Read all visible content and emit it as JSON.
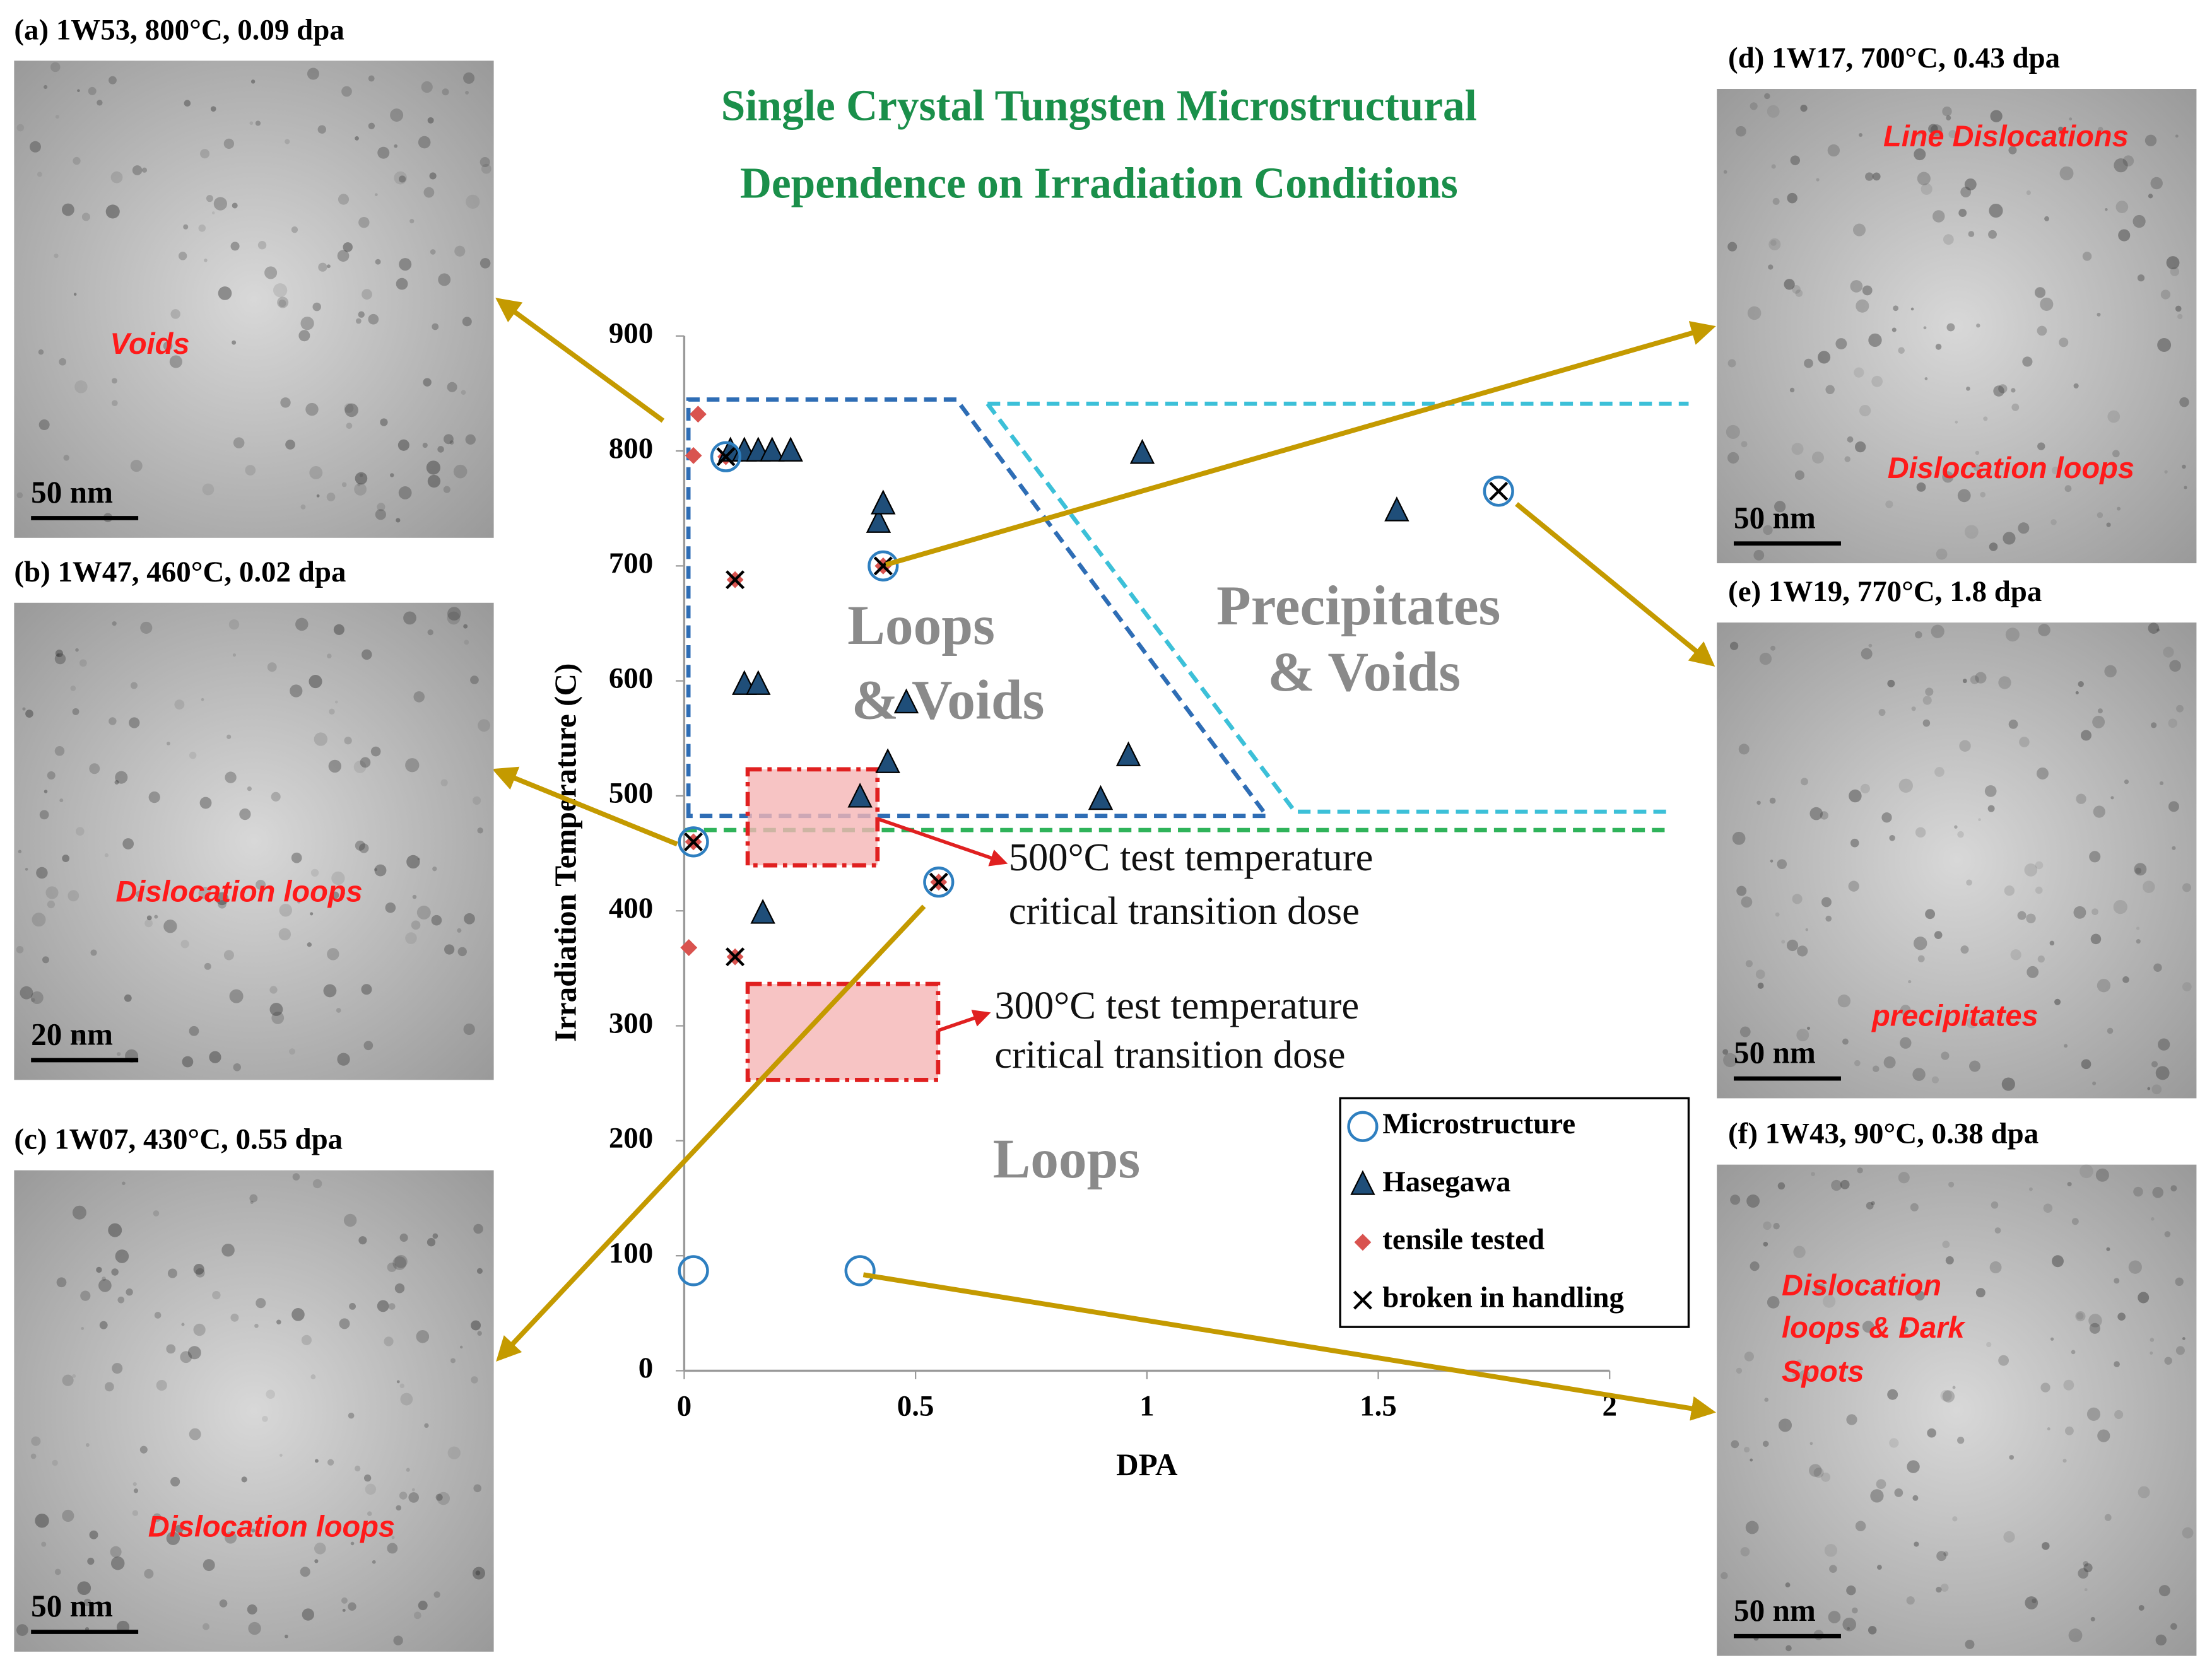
{
  "chart_data": {
    "type": "scatter",
    "title": [
      "Single Crystal Tungsten Microstructural",
      "Dependence on Irradiation Conditions"
    ],
    "x_label": "DPA",
    "y_label": "Irradiation Temperature (C)",
    "xlim": [
      0,
      2
    ],
    "ylim": [
      0,
      900
    ],
    "xticks": [
      0,
      0.5,
      1,
      1.5,
      2
    ],
    "yticks": [
      0,
      100,
      200,
      300,
      400,
      500,
      600,
      700,
      800,
      900
    ],
    "series": [
      {
        "name": "Microstructure",
        "marker": "circle",
        "color": "#2e7fc0",
        "x": [
          0.09,
          0.43,
          0.02,
          0.55,
          1.76,
          0.02,
          0.38
        ],
        "y": [
          795,
          700,
          460,
          425,
          765,
          87,
          87
        ]
      },
      {
        "name": "Hasegawa",
        "marker": "triangle",
        "color": "#1f4e79",
        "x": [
          0.1,
          0.13,
          0.16,
          0.19,
          0.23,
          0.42,
          0.43,
          0.99,
          1.54,
          0.13,
          0.16,
          0.48,
          0.44,
          0.38,
          0.9,
          0.96,
          0.17
        ],
        "y": [
          800,
          800,
          800,
          800,
          800,
          738,
          754,
          798,
          748,
          597,
          597,
          581,
          529,
          499,
          497,
          535,
          398
        ]
      },
      {
        "name": "tensile tested",
        "marker": "diamond",
        "color": "#d9534f",
        "x": [
          0.03,
          0.02,
          0.09,
          0.11,
          0.43,
          0.02,
          0.55,
          0.11,
          0.01
        ],
        "y": [
          832,
          796,
          795,
          688,
          700,
          460,
          425,
          360,
          368
        ]
      },
      {
        "name": "broken in handling",
        "marker": "x",
        "color": "#000000",
        "x": [
          0.09,
          0.11,
          0.43,
          0.02,
          0.11,
          0.55,
          1.76
        ],
        "y": [
          795,
          688,
          700,
          460,
          360,
          425,
          765
        ]
      }
    ],
    "annotations": [
      "Loops",
      "& Voids",
      "Precipitates",
      "& Voids",
      "Loops",
      "500°C test temperature",
      "critical transition dose",
      "300°C test temperature",
      "critical transition dose"
    ]
  },
  "panels": [
    {
      "title": "(a) 1W53, 800°C, 0.09 dpa",
      "scale_bar": "50 nm",
      "labels": [
        "Voids"
      ]
    },
    {
      "title": "(b) 1W47, 460°C, 0.02 dpa",
      "scale_bar": "20 nm",
      "labels": [
        "Dislocation  loops"
      ]
    },
    {
      "title": "(c) 1W07, 430°C, 0.55 dpa",
      "scale_bar": "50 nm",
      "labels": [
        "Dislocation  loops"
      ]
    },
    {
      "title": "(d) 1W17, 700°C, 0.43 dpa",
      "scale_bar": "50 nm",
      "labels": [
        "Line Dislocations",
        "Dislocation  loops"
      ]
    },
    {
      "title": "(e) 1W19, 770°C, 1.8 dpa",
      "scale_bar": "50 nm",
      "labels": [
        "precipitates"
      ]
    },
    {
      "title": "(f) 1W43, 90°C, 0.38 dpa",
      "scale_bar": "50 nm",
      "labels": [
        "Dislocation",
        "loops & Dark",
        "Spots"
      ]
    }
  ]
}
